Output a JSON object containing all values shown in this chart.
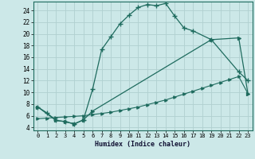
{
  "xlabel": "Humidex (Indice chaleur)",
  "background_color": "#cce8e8",
  "grid_color": "#b0d0d0",
  "line_color": "#1e6b5e",
  "xlim": [
    -0.5,
    23.5
  ],
  "ylim": [
    3.5,
    25.5
  ],
  "xticks": [
    0,
    1,
    2,
    3,
    4,
    5,
    6,
    7,
    8,
    9,
    10,
    11,
    12,
    13,
    14,
    15,
    16,
    17,
    18,
    19,
    20,
    21,
    22,
    23
  ],
  "yticks": [
    4,
    6,
    8,
    10,
    12,
    14,
    16,
    18,
    20,
    22,
    24
  ],
  "line1_x": [
    0,
    1,
    2,
    3,
    4,
    5,
    6,
    7,
    8,
    9,
    10,
    11,
    12,
    13,
    14,
    15,
    16,
    17,
    19,
    22,
    23
  ],
  "line1_y": [
    7.5,
    6.5,
    5.2,
    5.0,
    4.6,
    5.3,
    10.5,
    17.3,
    19.5,
    21.7,
    23.2,
    24.5,
    25.0,
    24.8,
    25.2,
    23.0,
    21.0,
    20.5,
    19.0,
    13.5,
    12.0
  ],
  "line2_x": [
    0,
    2,
    3,
    4,
    5,
    6,
    19,
    22,
    23
  ],
  "line2_y": [
    7.5,
    5.2,
    5.0,
    4.6,
    5.3,
    6.8,
    19.0,
    19.3,
    9.8
  ],
  "line3_x": [
    0,
    1,
    2,
    3,
    4,
    5,
    6,
    7,
    8,
    9,
    10,
    11,
    12,
    13,
    14,
    15,
    16,
    17,
    18,
    19,
    20,
    21,
    22,
    23
  ],
  "line3_y": [
    5.5,
    5.6,
    5.7,
    5.8,
    5.9,
    6.0,
    6.2,
    6.4,
    6.6,
    6.9,
    7.2,
    7.5,
    7.9,
    8.3,
    8.7,
    9.2,
    9.7,
    10.2,
    10.7,
    11.2,
    11.7,
    12.2,
    12.7,
    9.8
  ]
}
